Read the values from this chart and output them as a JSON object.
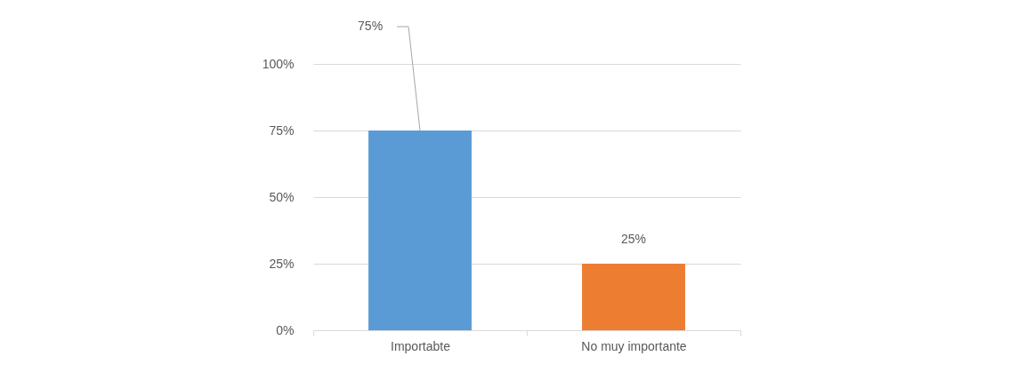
{
  "chart_data": {
    "type": "bar",
    "categories": [
      "Importabte",
      "No muy importante"
    ],
    "values": [
      75,
      25
    ],
    "colors": [
      "#5b9bd5",
      "#ed7d31"
    ],
    "ylim": [
      0,
      100
    ],
    "yticks": [
      {
        "value": 0,
        "label": "0%"
      },
      {
        "value": 25,
        "label": "25%"
      },
      {
        "value": 50,
        "label": "50%"
      },
      {
        "value": 75,
        "label": "75%"
      },
      {
        "value": 100,
        "label": "100%"
      }
    ],
    "grid": "y",
    "value_labels": [
      "75%",
      "25%"
    ]
  }
}
